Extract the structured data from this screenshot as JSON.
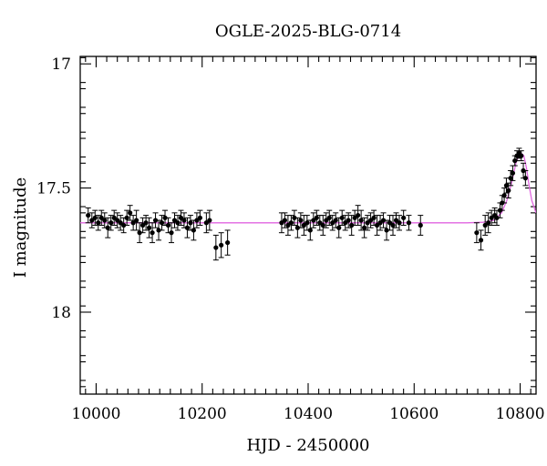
{
  "chart_data": {
    "type": "scatter",
    "title": "OGLE-2025-BLG-0714",
    "xlabel": "HJD - 2450000",
    "ylabel": "I magnitude",
    "xlim": [
      9970,
      10830
    ],
    "ylim": [
      18.33,
      16.97
    ],
    "y_inverted": true,
    "x_ticks": [
      10000,
      10200,
      10400,
      10600,
      10800
    ],
    "x_tick_labels": [
      "10000",
      "10200",
      "10400",
      "10600",
      "10800"
    ],
    "y_ticks": [
      17,
      17.5,
      18
    ],
    "y_tick_labels": [
      "17",
      "17.5",
      "18"
    ],
    "grid": false,
    "legend": "none",
    "colors": {
      "points": "#000000",
      "model": "#e066e0"
    },
    "series": [
      {
        "type": "scatter_errorbar",
        "points": [
          [
            9985,
            17.61,
            0.03
          ],
          [
            9992,
            17.63,
            0.03
          ],
          [
            9998,
            17.62,
            0.03
          ],
          [
            10004,
            17.64,
            0.03
          ],
          [
            10010,
            17.62,
            0.03
          ],
          [
            10016,
            17.63,
            0.03
          ],
          [
            10022,
            17.66,
            0.04
          ],
          [
            10028,
            17.64,
            0.03
          ],
          [
            10034,
            17.62,
            0.03
          ],
          [
            10040,
            17.63,
            0.03
          ],
          [
            10046,
            17.64,
            0.03
          ],
          [
            10052,
            17.65,
            0.03
          ],
          [
            10058,
            17.62,
            0.03
          ],
          [
            10064,
            17.6,
            0.03
          ],
          [
            10070,
            17.64,
            0.03
          ],
          [
            10076,
            17.63,
            0.04
          ],
          [
            10082,
            17.68,
            0.04
          ],
          [
            10088,
            17.65,
            0.03
          ],
          [
            10094,
            17.64,
            0.03
          ],
          [
            10100,
            17.66,
            0.04
          ],
          [
            10106,
            17.68,
            0.04
          ],
          [
            10112,
            17.63,
            0.03
          ],
          [
            10118,
            17.67,
            0.04
          ],
          [
            10124,
            17.64,
            0.03
          ],
          [
            10130,
            17.62,
            0.03
          ],
          [
            10136,
            17.65,
            0.03
          ],
          [
            10142,
            17.68,
            0.04
          ],
          [
            10148,
            17.63,
            0.03
          ],
          [
            10154,
            17.64,
            0.03
          ],
          [
            10160,
            17.62,
            0.03
          ],
          [
            10166,
            17.63,
            0.03
          ],
          [
            10172,
            17.66,
            0.04
          ],
          [
            10178,
            17.64,
            0.03
          ],
          [
            10184,
            17.67,
            0.04
          ],
          [
            10190,
            17.63,
            0.03
          ],
          [
            10196,
            17.62,
            0.03
          ],
          [
            10208,
            17.64,
            0.04
          ],
          [
            10214,
            17.63,
            0.04
          ],
          [
            10226,
            17.74,
            0.05
          ],
          [
            10236,
            17.73,
            0.05
          ],
          [
            10248,
            17.72,
            0.05
          ],
          [
            10350,
            17.64,
            0.04
          ],
          [
            10356,
            17.63,
            0.03
          ],
          [
            10362,
            17.65,
            0.04
          ],
          [
            10368,
            17.64,
            0.03
          ],
          [
            10374,
            17.62,
            0.03
          ],
          [
            10380,
            17.66,
            0.04
          ],
          [
            10386,
            17.63,
            0.03
          ],
          [
            10392,
            17.65,
            0.04
          ],
          [
            10398,
            17.64,
            0.03
          ],
          [
            10404,
            17.67,
            0.04
          ],
          [
            10410,
            17.63,
            0.03
          ],
          [
            10416,
            17.62,
            0.03
          ],
          [
            10422,
            17.64,
            0.03
          ],
          [
            10428,
            17.65,
            0.04
          ],
          [
            10434,
            17.63,
            0.03
          ],
          [
            10440,
            17.62,
            0.03
          ],
          [
            10446,
            17.64,
            0.03
          ],
          [
            10452,
            17.63,
            0.03
          ],
          [
            10458,
            17.66,
            0.04
          ],
          [
            10464,
            17.62,
            0.03
          ],
          [
            10470,
            17.64,
            0.03
          ],
          [
            10476,
            17.63,
            0.03
          ],
          [
            10482,
            17.65,
            0.04
          ],
          [
            10488,
            17.62,
            0.03
          ],
          [
            10494,
            17.61,
            0.04
          ],
          [
            10500,
            17.63,
            0.04
          ],
          [
            10506,
            17.66,
            0.04
          ],
          [
            10512,
            17.64,
            0.03
          ],
          [
            10518,
            17.63,
            0.03
          ],
          [
            10524,
            17.62,
            0.03
          ],
          [
            10530,
            17.65,
            0.04
          ],
          [
            10536,
            17.64,
            0.03
          ],
          [
            10542,
            17.63,
            0.03
          ],
          [
            10548,
            17.67,
            0.04
          ],
          [
            10554,
            17.64,
            0.03
          ],
          [
            10560,
            17.65,
            0.04
          ],
          [
            10566,
            17.63,
            0.03
          ],
          [
            10572,
            17.64,
            0.03
          ],
          [
            10580,
            17.62,
            0.03
          ],
          [
            10590,
            17.64,
            0.03
          ],
          [
            10612,
            17.65,
            0.04
          ],
          [
            10718,
            17.68,
            0.04
          ],
          [
            10726,
            17.71,
            0.04
          ],
          [
            10734,
            17.65,
            0.04
          ],
          [
            10740,
            17.64,
            0.04
          ],
          [
            10746,
            17.62,
            0.03
          ],
          [
            10752,
            17.61,
            0.03
          ],
          [
            10756,
            17.62,
            0.03
          ],
          [
            10762,
            17.59,
            0.03
          ],
          [
            10766,
            17.56,
            0.03
          ],
          [
            10770,
            17.53,
            0.03
          ],
          [
            10774,
            17.49,
            0.03
          ],
          [
            10778,
            17.51,
            0.03
          ],
          [
            10782,
            17.46,
            0.03
          ],
          [
            10786,
            17.44,
            0.03
          ],
          [
            10790,
            17.39,
            0.02
          ],
          [
            10794,
            17.37,
            0.02
          ],
          [
            10798,
            17.36,
            0.02
          ],
          [
            10802,
            17.37,
            0.02
          ],
          [
            10806,
            17.43,
            0.03
          ],
          [
            10810,
            17.46,
            0.03
          ]
        ]
      },
      {
        "type": "model_line",
        "baseline": 17.64,
        "peak": {
          "x": 10802,
          "y": 17.36
        },
        "points": [
          [
            9970,
            17.64
          ],
          [
            10700,
            17.64
          ],
          [
            10730,
            17.638
          ],
          [
            10750,
            17.63
          ],
          [
            10765,
            17.6
          ],
          [
            10775,
            17.55
          ],
          [
            10785,
            17.47
          ],
          [
            10792,
            17.4
          ],
          [
            10797,
            17.37
          ],
          [
            10802,
            17.36
          ],
          [
            10807,
            17.37
          ],
          [
            10812,
            17.42
          ],
          [
            10817,
            17.49
          ],
          [
            10822,
            17.55
          ],
          [
            10830,
            17.6
          ]
        ]
      }
    ]
  }
}
